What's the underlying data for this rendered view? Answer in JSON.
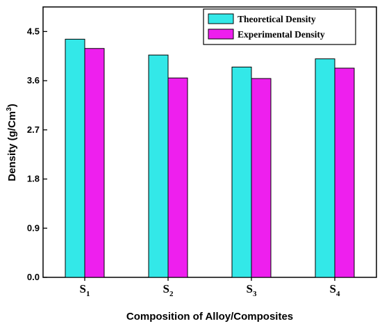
{
  "chart_data": {
    "type": "bar",
    "categories": [
      {
        "base": "S",
        "sub": "1"
      },
      {
        "base": "S",
        "sub": "2"
      },
      {
        "base": "S",
        "sub": "3"
      },
      {
        "base": "S",
        "sub": "4"
      }
    ],
    "series": [
      {
        "name": "Theoretical Density",
        "color": "#33e8e8",
        "values": [
          4.36,
          4.07,
          3.85,
          4.0
        ]
      },
      {
        "name": "Experimental Density",
        "color": "#ee1fee",
        "values": [
          4.19,
          3.65,
          3.64,
          3.83
        ]
      }
    ],
    "title": "",
    "xlabel": "Composition of Alloy/Composites",
    "ylabel": {
      "text": "Density (g/Cm",
      "sup": "3",
      "close": ")"
    },
    "ylim": [
      0,
      4.95
    ],
    "yticks": [
      "0.0",
      "0.9",
      "1.8",
      "2.7",
      "3.6",
      "4.5"
    ],
    "grid": false,
    "legend_position": "top-right"
  }
}
